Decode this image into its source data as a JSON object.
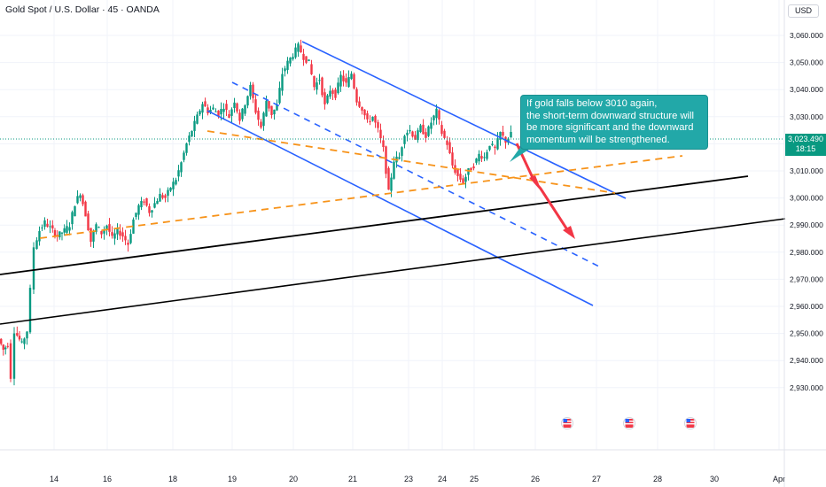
{
  "header": {
    "symbol_title": "Gold Spot / U.S. Dollar · 45 · OANDA",
    "currency": "USD"
  },
  "price_badge": {
    "price": "3,023.490",
    "countdown": "18:15"
  },
  "annotation": {
    "lines": [
      "If gold falls below 3010 again,",
      "the short-term downward structure will",
      "be more significant and the downward",
      "momentum will be strengthened."
    ]
  },
  "event_icons": [
    "us-flag-icon",
    "us-flag-icon",
    "us-flag-icon"
  ],
  "colors": {
    "up": "#089981",
    "down": "#f23645",
    "channel": "#2962ff",
    "support": "#000000",
    "dashed_orange": "#f7931a",
    "arrow": "#f23645",
    "callout": "#22a8a8"
  },
  "chart_data": {
    "type": "candlestick",
    "y_axis": {
      "ticks": [
        2930,
        2940,
        2950,
        2960,
        2970,
        2980,
        2990,
        3000,
        3010,
        3020,
        3030,
        3040,
        3050,
        3060
      ],
      "tick_labels": [
        "2,930.000",
        "2,940.000",
        "2,950.000",
        "2,960.000",
        "2,970.000",
        "2,980.000",
        "2,990.000",
        "3,000.000",
        "3,010.000",
        "3,020.000",
        "3,030.000",
        "3,040.000",
        "3,050.000",
        "3,060.000"
      ],
      "range": [
        2922,
        3068
      ]
    },
    "x_axis": {
      "tick_labels": [
        "14",
        "16",
        "18",
        "19",
        "20",
        "21",
        "23",
        "24",
        "25",
        "26",
        "27",
        "28",
        "30",
        "Apr"
      ]
    },
    "last_price": 3023.49,
    "price_path": [
      [
        0,
        2948
      ],
      [
        5,
        2944
      ],
      [
        10,
        2946
      ],
      [
        14,
        2934
      ],
      [
        18,
        2951
      ],
      [
        26,
        2946
      ],
      [
        32,
        2951
      ],
      [
        36,
        2966
      ],
      [
        40,
        2982
      ],
      [
        46,
        2988
      ],
      [
        52,
        2991
      ],
      [
        58,
        2989
      ],
      [
        66,
        2986
      ],
      [
        74,
        2988
      ],
      [
        80,
        2990
      ],
      [
        86,
        2998
      ],
      [
        92,
        3002
      ],
      [
        98,
        2994
      ],
      [
        104,
        2984
      ],
      [
        110,
        2990
      ],
      [
        116,
        2987
      ],
      [
        122,
        2990
      ],
      [
        128,
        2985
      ],
      [
        134,
        2988
      ],
      [
        140,
        2986
      ],
      [
        146,
        2983
      ],
      [
        152,
        2992
      ],
      [
        158,
        2997
      ],
      [
        164,
        2999
      ],
      [
        170,
        2995
      ],
      [
        176,
        2998
      ],
      [
        182,
        3001
      ],
      [
        188,
        3000
      ],
      [
        194,
        3004
      ],
      [
        200,
        3007
      ],
      [
        206,
        3013
      ],
      [
        212,
        3020
      ],
      [
        218,
        3025
      ],
      [
        224,
        3030
      ],
      [
        230,
        3035
      ],
      [
        236,
        3032
      ],
      [
        242,
        3033
      ],
      [
        248,
        3031
      ],
      [
        254,
        3034
      ],
      [
        260,
        3030
      ],
      [
        266,
        3036
      ],
      [
        272,
        3029
      ],
      [
        278,
        3035
      ],
      [
        284,
        3041
      ],
      [
        290,
        3032
      ],
      [
        296,
        3026
      ],
      [
        302,
        3036
      ],
      [
        308,
        3031
      ],
      [
        314,
        3034
      ],
      [
        320,
        3046
      ],
      [
        326,
        3050
      ],
      [
        332,
        3053
      ],
      [
        338,
        3056
      ],
      [
        344,
        3052
      ],
      [
        350,
        3050
      ],
      [
        356,
        3041
      ],
      [
        362,
        3044
      ],
      [
        368,
        3034
      ],
      [
        374,
        3040
      ],
      [
        380,
        3038
      ],
      [
        386,
        3045
      ],
      [
        392,
        3042
      ],
      [
        398,
        3046
      ],
      [
        404,
        3036
      ],
      [
        410,
        3033
      ],
      [
        416,
        3028
      ],
      [
        422,
        3030
      ],
      [
        428,
        3025
      ],
      [
        434,
        3018
      ],
      [
        440,
        3002
      ],
      [
        446,
        3014
      ],
      [
        452,
        3015
      ],
      [
        458,
        3024
      ],
      [
        464,
        3025
      ],
      [
        470,
        3022
      ],
      [
        476,
        3026
      ],
      [
        482,
        3023
      ],
      [
        488,
        3028
      ],
      [
        494,
        3032
      ],
      [
        500,
        3024
      ],
      [
        506,
        3020
      ],
      [
        512,
        3012
      ],
      [
        518,
        3008
      ],
      [
        524,
        3006
      ],
      [
        530,
        3010
      ],
      [
        536,
        3012
      ],
      [
        542,
        3016
      ],
      [
        548,
        3015
      ],
      [
        554,
        3020
      ],
      [
        560,
        3018
      ],
      [
        566,
        3024
      ],
      [
        572,
        3021
      ],
      [
        578,
        3023.49
      ]
    ]
  }
}
